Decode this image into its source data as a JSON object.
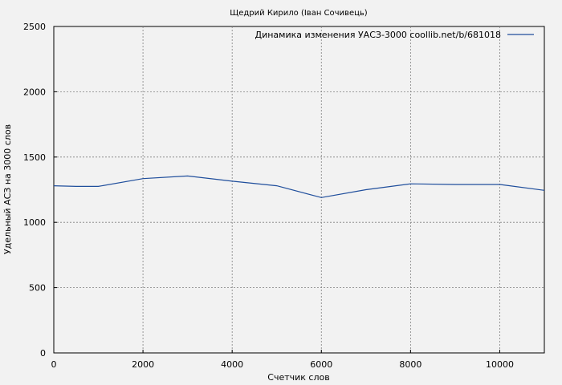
{
  "chart_data": {
    "type": "line",
    "title": "Щедрий Кирило (Іван Сочивець)",
    "xlabel": "Счетчик слов",
    "ylabel": "Удельный АСЗ на 3000 слов",
    "xlim": [
      0,
      11000
    ],
    "ylim": [
      0,
      2500
    ],
    "x_ticks": [
      0,
      2000,
      4000,
      6000,
      8000,
      10000
    ],
    "y_ticks": [
      0,
      500,
      1000,
      1500,
      2000,
      2500
    ],
    "grid": true,
    "legend_position": "top-right",
    "series": [
      {
        "name": "Динамика изменения УАСЗ-3000 coollib.net/b/681018",
        "color": "#1f4e9c",
        "x": [
          0,
          500,
          1000,
          2000,
          3000,
          4000,
          5000,
          6000,
          7000,
          8000,
          9000,
          10000,
          11000
        ],
        "y": [
          1280,
          1275,
          1275,
          1335,
          1355,
          1315,
          1280,
          1190,
          1250,
          1295,
          1290,
          1290,
          1245
        ]
      }
    ]
  }
}
